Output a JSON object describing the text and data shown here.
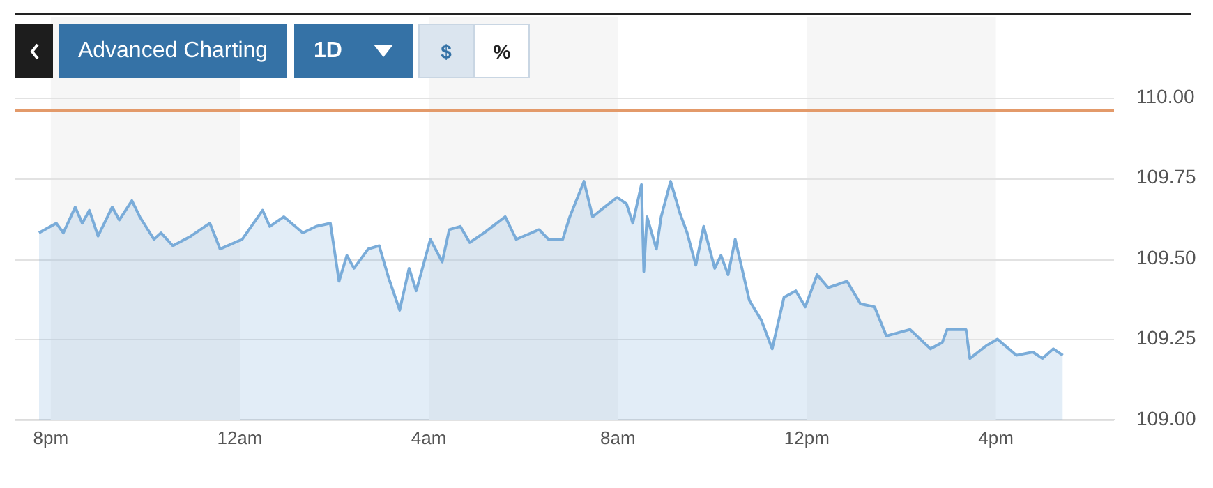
{
  "chart_data": {
    "type": "area",
    "marker": "none",
    "grid": "y",
    "annotations": [
      "Advanced Charting",
      "1D",
      "$",
      "%"
    ],
    "xlim": [
      "--01-01T19:15",
      "--01-02T18:30"
    ],
    "xticks": [
      {
        "value": "--01-01T20:00",
        "label": "8pm"
      },
      {
        "value": "--01-02T00:00",
        "label": "12am"
      },
      {
        "value": "--01-02T04:00",
        "label": "4am"
      },
      {
        "value": "--01-02T08:00",
        "label": "8am"
      },
      {
        "value": "--01-02T12:00",
        "label": "12pm"
      },
      {
        "value": "--01-02T16:00",
        "label": "4pm"
      }
    ],
    "ylim": [
      109,
      110
    ],
    "yticks": [
      {
        "value": 109,
        "label": "109.00"
      },
      {
        "value": 109.25,
        "label": "109.25"
      },
      {
        "value": 109.5,
        "label": "109.50"
      },
      {
        "value": 109.75,
        "label": "109.75"
      },
      {
        "value": 110,
        "label": "110.00"
      }
    ],
    "bands": [
      {
        "axis": "x",
        "from": "--01-01T20:00",
        "to": "--01-02T00:00",
        "color": "#f6f6f6"
      },
      {
        "axis": "x",
        "from": "--01-02T04:00",
        "to": "--01-02T08:00",
        "color": "#f6f6f6"
      },
      {
        "axis": "x",
        "from": "--01-02T12:00",
        "to": "--01-02T16:00",
        "color": "#f6f6f6"
      }
    ],
    "ref_lines": [
      {
        "axis": "y",
        "value": 109.96,
        "color": "#e39a6a"
      }
    ],
    "series": [
      {
        "color": "#7aacd9",
        "x": [
          "--01-01T19:45",
          "--01-01T20:07",
          "--01-01T20:16",
          "--01-01T20:31",
          "--01-01T20:40",
          "--01-01T20:49",
          "--01-01T21:00",
          "--01-01T21:18",
          "--01-01T21:27",
          "--01-01T21:43",
          "--01-01T21:53",
          "--01-01T22:11",
          "--01-01T22:20",
          "--01-01T22:35",
          "--01-01T22:58",
          "--01-01T23:22",
          "--01-01T23:35",
          "--01-02T00:03",
          "--01-02T00:29",
          "--01-02T00:38",
          "--01-02T00:56",
          "--01-02T01:20",
          "--01-02T01:37",
          "--01-02T01:55",
          "--01-02T02:06",
          "--01-02T02:16",
          "--01-02T02:25",
          "--01-02T02:43",
          "--01-02T02:57",
          "--01-02T03:09",
          "--01-02T03:23",
          "--01-02T03:35",
          "--01-02T03:44",
          "--01-02T04:02",
          "--01-02T04:17",
          "--01-02T04:26",
          "--01-02T04:40",
          "--01-02T04:52",
          "--01-02T05:10",
          "--01-02T05:37",
          "--01-02T05:51",
          "--01-02T06:20",
          "--01-02T06:32",
          "--01-02T06:50",
          "--01-02T06:59",
          "--01-02T07:17",
          "--01-02T07:28",
          "--01-02T07:38",
          "--01-02T07:59",
          "--01-02T08:11",
          "--01-02T08:19",
          "--01-02T08:30",
          "--01-02T08:33",
          "--01-02T08:37",
          "--01-02T08:49",
          "--01-02T08:55",
          "--01-02T09:07",
          "--01-02T09:19",
          "--01-02T09:28",
          "--01-02T09:39",
          "--01-02T09:49",
          "--01-02T10:03",
          "--01-02T10:11",
          "--01-02T10:20",
          "--01-02T10:29",
          "--01-02T10:47",
          "--01-02T11:02",
          "--01-02T11:16",
          "--01-02T11:31",
          "--01-02T11:46",
          "--01-02T11:58",
          "--01-02T12:13",
          "--01-02T12:27",
          "--01-02T12:51",
          "--01-02T13:08",
          "--01-02T13:26",
          "--01-02T13:41",
          "--01-02T14:11",
          "--01-02T14:37",
          "--01-02T14:52",
          "--01-02T14:58",
          "--01-02T15:22",
          "--01-02T15:27",
          "--01-02T15:48",
          "--01-02T16:02",
          "--01-02T16:26",
          "--01-02T16:47",
          "--01-02T16:59",
          "--01-02T17:13",
          "--01-02T17:25"
        ],
        "values": [
          109.58,
          109.61,
          109.58,
          109.66,
          109.61,
          109.65,
          109.57,
          109.66,
          109.62,
          109.68,
          109.63,
          109.56,
          109.58,
          109.54,
          109.57,
          109.61,
          109.53,
          109.56,
          109.65,
          109.6,
          109.63,
          109.58,
          109.6,
          109.61,
          109.43,
          109.51,
          109.47,
          109.53,
          109.54,
          109.44,
          109.34,
          109.47,
          109.4,
          109.56,
          109.49,
          109.59,
          109.6,
          109.55,
          109.58,
          109.63,
          109.56,
          109.59,
          109.56,
          109.56,
          109.63,
          109.74,
          109.63,
          109.65,
          109.69,
          109.67,
          109.61,
          109.73,
          109.46,
          109.63,
          109.53,
          109.63,
          109.74,
          109.64,
          109.58,
          109.48,
          109.6,
          109.47,
          109.51,
          109.45,
          109.56,
          109.37,
          109.31,
          109.22,
          109.38,
          109.4,
          109.35,
          109.45,
          109.41,
          109.43,
          109.36,
          109.35,
          109.26,
          109.28,
          109.22,
          109.24,
          109.28,
          109.28,
          109.19,
          109.23,
          109.25,
          109.2,
          109.21,
          109.19,
          109.22,
          109.2
        ]
      }
    ]
  }
}
